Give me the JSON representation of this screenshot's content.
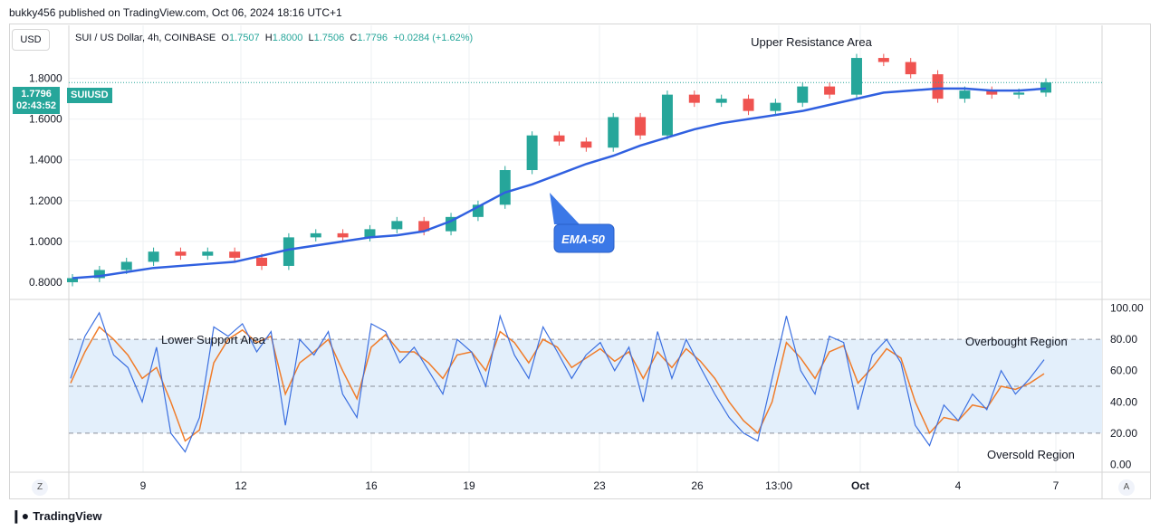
{
  "header": {
    "publisher_line": "bukky456 published on TradingView.com, Oct 06, 2024 18:16 UTC+1"
  },
  "toolbar": {
    "currency_label": "USD",
    "scale_z": "Z",
    "scale_a": "A"
  },
  "legend": {
    "symbol_text": "SUI / US Dollar, 4h, COINBASE",
    "o_label": "O",
    "o_value": "1.7507",
    "h_label": "H",
    "h_value": "1.8000",
    "l_label": "L",
    "l_value": "1.7506",
    "c_label": "C",
    "c_value": "1.7796",
    "change": "+0.0284 (+1.62%)"
  },
  "price_tag": {
    "price": "1.7796",
    "countdown": "02:43:52",
    "symbol": "SUIUSD"
  },
  "footer": {
    "brand": "TradingView"
  },
  "colors": {
    "up": "#26a69a",
    "down": "#ef5350",
    "ema": "#3060e0",
    "rsi": "#3b6fe0",
    "rsi_ma": "#f07c2a",
    "band": "#e3effb"
  },
  "chart_data": [
    {
      "type": "candlestick",
      "panel": "price",
      "y_ticks": [
        "0.8000",
        "1.0000",
        "1.2000",
        "1.4000",
        "1.6000",
        "1.8000"
      ],
      "ylim": [
        0.72,
        2.06
      ],
      "x_ticks": [
        "9",
        "12",
        "16",
        "19",
        "23",
        "26",
        "13:00",
        "Oct",
        "4",
        "7"
      ],
      "annotations": [
        "Upper Resistance Area",
        "Lower Support Area",
        "EMA-50"
      ],
      "ema_label": "EMA-50",
      "ema_series": [
        0.82,
        0.83,
        0.85,
        0.87,
        0.88,
        0.89,
        0.9,
        0.93,
        0.96,
        0.98,
        1.0,
        1.02,
        1.03,
        1.05,
        1.1,
        1.17,
        1.24,
        1.28,
        1.33,
        1.38,
        1.42,
        1.47,
        1.51,
        1.55,
        1.58,
        1.6,
        1.62,
        1.64,
        1.67,
        1.7,
        1.73,
        1.74,
        1.75,
        1.75,
        1.74,
        1.74,
        1.75
      ],
      "close_series": [
        0.82,
        0.86,
        0.9,
        0.95,
        0.93,
        0.95,
        0.92,
        0.88,
        1.02,
        1.04,
        1.02,
        1.06,
        1.1,
        1.05,
        1.12,
        1.18,
        1.35,
        1.52,
        1.49,
        1.46,
        1.61,
        1.52,
        1.72,
        1.68,
        1.7,
        1.64,
        1.68,
        1.76,
        1.72,
        1.9,
        1.88,
        1.82,
        1.7,
        1.74,
        1.72,
        1.73,
        1.78
      ],
      "last_price": 1.7796
    },
    {
      "type": "line",
      "panel": "rsi",
      "y_ticks": [
        "0.00",
        "20.00",
        "40.00",
        "60.00",
        "80.00",
        "100.00"
      ],
      "ylim": [
        -5,
        105
      ],
      "levels": [
        20,
        50,
        80
      ],
      "annotations": [
        "Overbought Region",
        "Oversold Region"
      ],
      "series": [
        {
          "values": [
            55,
            82,
            97,
            70,
            62,
            40,
            75,
            20,
            8,
            30,
            88,
            82,
            90,
            72,
            85,
            25,
            80,
            70,
            85,
            45,
            30,
            90,
            85,
            65,
            75,
            60,
            45,
            80,
            72,
            50,
            95,
            70,
            55,
            88,
            72,
            55,
            70,
            78,
            60,
            75,
            40,
            85,
            55,
            80,
            62,
            45,
            30,
            20,
            15,
            55,
            95,
            60,
            45,
            82,
            78,
            35,
            70,
            80,
            65,
            25,
            12,
            38,
            28,
            45,
            35,
            60,
            45,
            55,
            67
          ]
        },
        {
          "values": [
            52,
            72,
            88,
            80,
            70,
            55,
            62,
            40,
            15,
            22,
            65,
            80,
            86,
            78,
            82,
            45,
            65,
            72,
            80,
            60,
            42,
            75,
            83,
            72,
            72,
            65,
            55,
            70,
            72,
            60,
            85,
            78,
            65,
            80,
            75,
            62,
            68,
            74,
            66,
            72,
            55,
            72,
            62,
            74,
            66,
            55,
            40,
            28,
            20,
            40,
            78,
            68,
            55,
            72,
            76,
            52,
            62,
            74,
            68,
            40,
            20,
            30,
            28,
            38,
            36,
            50,
            48,
            52,
            58
          ]
        }
      ]
    }
  ]
}
